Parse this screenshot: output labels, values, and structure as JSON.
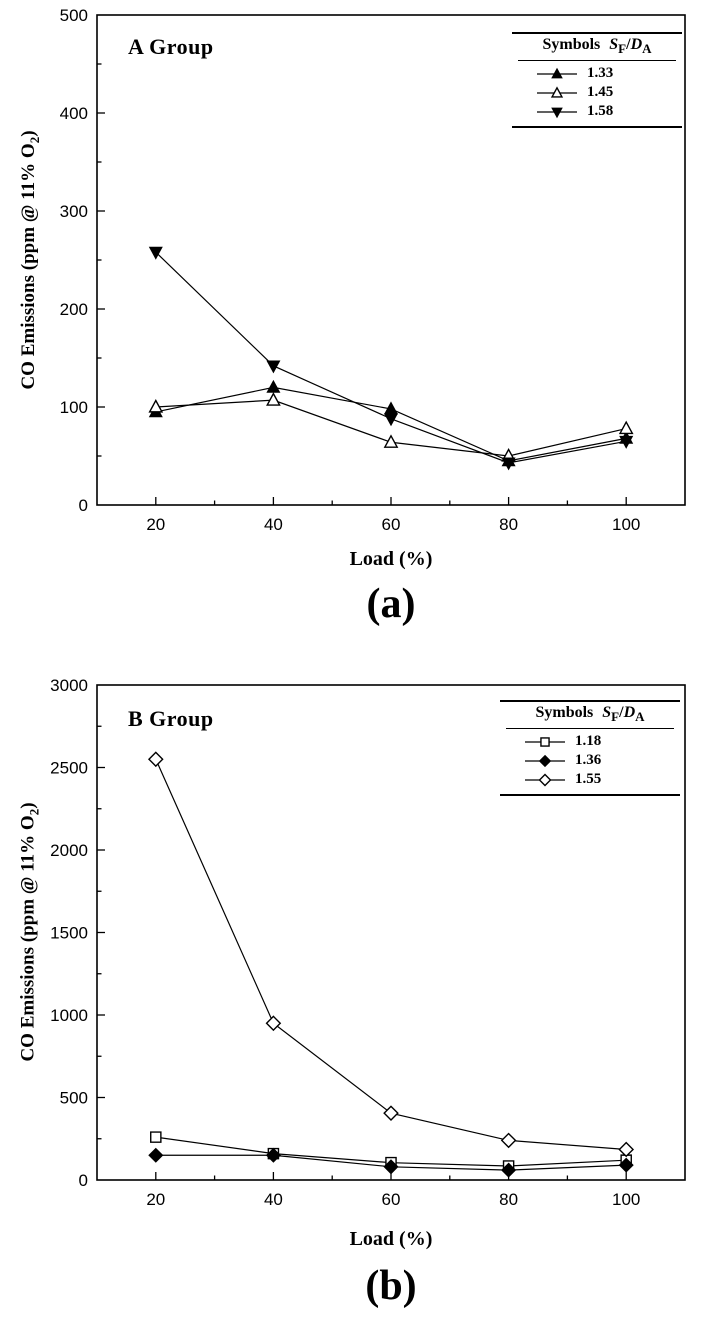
{
  "figure": {
    "background": "#ffffff",
    "line_color": "#000000"
  },
  "chart_data": [
    {
      "type": "line",
      "title": "A Group",
      "caption": "(a)",
      "xlabel": "Load (%)",
      "ylabel": {
        "main": "CO Emissions (ppm @ 11% O",
        "sub": "2",
        "end": ")"
      },
      "legend": {
        "position": "top-right",
        "symbols_label": "Symbols",
        "ratio": {
          "s": "S",
          "s_sub": "F",
          "slash": "/",
          "d": "D",
          "d_sub": "A"
        }
      },
      "x": [
        20,
        40,
        60,
        80,
        100
      ],
      "xlim": [
        10,
        110
      ],
      "ylim": [
        0,
        500
      ],
      "xticks": [
        20,
        40,
        60,
        80,
        100
      ],
      "yticks": [
        0,
        100,
        200,
        300,
        400,
        500
      ],
      "x_minor_step": 10,
      "y_minor_step": 50,
      "grid": false,
      "series": [
        {
          "name": "1.33",
          "marker": "triangle-up-filled",
          "values": [
            95,
            120,
            98,
            45,
            68
          ]
        },
        {
          "name": "1.45",
          "marker": "triangle-up-open",
          "values": [
            100,
            107,
            64,
            50,
            78
          ]
        },
        {
          "name": "1.58",
          "marker": "triangle-down-filled",
          "values": [
            258,
            142,
            88,
            43,
            65
          ]
        }
      ]
    },
    {
      "type": "line",
      "title": "B Group",
      "caption": "(b)",
      "xlabel": "Load (%)",
      "ylabel": {
        "main": "CO Emissions (ppm @ 11% O",
        "sub": "2",
        "end": ")"
      },
      "legend": {
        "position": "top-right",
        "symbols_label": "Symbols",
        "ratio": {
          "s": "S",
          "s_sub": "F",
          "slash": "/",
          "d": "D",
          "d_sub": "A"
        }
      },
      "x": [
        20,
        40,
        60,
        80,
        100
      ],
      "xlim": [
        10,
        110
      ],
      "ylim": [
        0,
        3000
      ],
      "xticks": [
        20,
        40,
        60,
        80,
        100
      ],
      "yticks": [
        0,
        500,
        1000,
        1500,
        2000,
        2500,
        3000
      ],
      "x_minor_step": 10,
      "y_minor_step": 250,
      "grid": false,
      "series": [
        {
          "name": "1.18",
          "marker": "square-open",
          "values": [
            260,
            160,
            105,
            85,
            120
          ]
        },
        {
          "name": "1.36",
          "marker": "diamond-filled",
          "values": [
            150,
            150,
            80,
            60,
            90
          ]
        },
        {
          "name": "1.55",
          "marker": "diamond-open",
          "values": [
            2550,
            950,
            405,
            240,
            185
          ]
        }
      ]
    }
  ]
}
